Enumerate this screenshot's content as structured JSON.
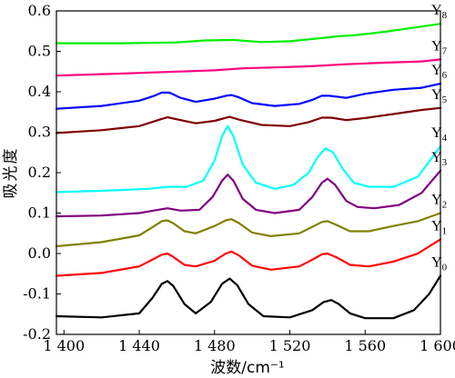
{
  "chart_data": {
    "type": "line",
    "xlabel": "波数/cm⁻¹",
    "ylabel": "吸光度",
    "xlim": [
      1396,
      1600
    ],
    "ylim": [
      -0.2,
      0.6
    ],
    "x_ticks": [
      1400,
      1440,
      1480,
      1520,
      1560,
      1600
    ],
    "x_tick_labels": [
      "1 400",
      "1 440",
      "1 480",
      "1 520",
      "1 560",
      "1 600"
    ],
    "y_ticks": [
      -0.2,
      -0.1,
      0.0,
      0.1,
      0.2,
      0.3,
      0.4,
      0.5,
      0.6
    ],
    "y_tick_labels": [
      "-0.2",
      "-0.1",
      "0.0",
      "0.1",
      "0.2",
      "0.3",
      "0.4",
      "0.5",
      "0.6"
    ],
    "grid": false,
    "legend": "inline labels at right",
    "series": [
      {
        "name": "Y",
        "sub": "0",
        "color": "#000000",
        "points": [
          [
            1396,
            -0.155
          ],
          [
            1420,
            -0.158
          ],
          [
            1440,
            -0.148
          ],
          [
            1447,
            -0.11
          ],
          [
            1452,
            -0.075
          ],
          [
            1455,
            -0.068
          ],
          [
            1458,
            -0.08
          ],
          [
            1464,
            -0.125
          ],
          [
            1470,
            -0.148
          ],
          [
            1478,
            -0.12
          ],
          [
            1484,
            -0.075
          ],
          [
            1488,
            -0.062
          ],
          [
            1492,
            -0.078
          ],
          [
            1498,
            -0.125
          ],
          [
            1506,
            -0.155
          ],
          [
            1520,
            -0.158
          ],
          [
            1532,
            -0.14
          ],
          [
            1538,
            -0.12
          ],
          [
            1542,
            -0.115
          ],
          [
            1546,
            -0.125
          ],
          [
            1552,
            -0.148
          ],
          [
            1560,
            -0.16
          ],
          [
            1575,
            -0.16
          ],
          [
            1586,
            -0.14
          ],
          [
            1594,
            -0.1
          ],
          [
            1600,
            -0.055
          ]
        ]
      },
      {
        "name": "Y",
        "sub": "1",
        "color": "#ff0000",
        "points": [
          [
            1396,
            -0.055
          ],
          [
            1420,
            -0.048
          ],
          [
            1440,
            -0.032
          ],
          [
            1447,
            -0.015
          ],
          [
            1452,
            -0.003
          ],
          [
            1455,
            0.0
          ],
          [
            1458,
            -0.008
          ],
          [
            1464,
            -0.028
          ],
          [
            1470,
            -0.032
          ],
          [
            1480,
            -0.018
          ],
          [
            1486,
            0.0
          ],
          [
            1489,
            0.005
          ],
          [
            1493,
            -0.005
          ],
          [
            1500,
            -0.03
          ],
          [
            1510,
            -0.04
          ],
          [
            1525,
            -0.032
          ],
          [
            1532,
            -0.015
          ],
          [
            1537,
            -0.002
          ],
          [
            1540,
            0.0
          ],
          [
            1545,
            -0.01
          ],
          [
            1552,
            -0.028
          ],
          [
            1562,
            -0.032
          ],
          [
            1575,
            -0.02
          ],
          [
            1588,
            0.0
          ],
          [
            1600,
            0.035
          ]
        ]
      },
      {
        "name": "Y",
        "sub": "2",
        "color": "#808000",
        "points": [
          [
            1396,
            0.018
          ],
          [
            1420,
            0.028
          ],
          [
            1440,
            0.045
          ],
          [
            1447,
            0.065
          ],
          [
            1452,
            0.08
          ],
          [
            1455,
            0.082
          ],
          [
            1458,
            0.075
          ],
          [
            1464,
            0.055
          ],
          [
            1470,
            0.05
          ],
          [
            1480,
            0.068
          ],
          [
            1486,
            0.082
          ],
          [
            1489,
            0.085
          ],
          [
            1493,
            0.075
          ],
          [
            1500,
            0.052
          ],
          [
            1510,
            0.043
          ],
          [
            1525,
            0.05
          ],
          [
            1532,
            0.066
          ],
          [
            1537,
            0.078
          ],
          [
            1540,
            0.08
          ],
          [
            1545,
            0.07
          ],
          [
            1552,
            0.055
          ],
          [
            1562,
            0.055
          ],
          [
            1575,
            0.068
          ],
          [
            1588,
            0.08
          ],
          [
            1600,
            0.1
          ]
        ]
      },
      {
        "name": "Y",
        "sub": "3",
        "color": "#800080",
        "points": [
          [
            1396,
            0.092
          ],
          [
            1420,
            0.094
          ],
          [
            1440,
            0.1
          ],
          [
            1450,
            0.108
          ],
          [
            1455,
            0.112
          ],
          [
            1462,
            0.106
          ],
          [
            1472,
            0.108
          ],
          [
            1479,
            0.14
          ],
          [
            1484,
            0.18
          ],
          [
            1487,
            0.195
          ],
          [
            1490,
            0.18
          ],
          [
            1495,
            0.135
          ],
          [
            1502,
            0.108
          ],
          [
            1512,
            0.1
          ],
          [
            1525,
            0.108
          ],
          [
            1532,
            0.14
          ],
          [
            1537,
            0.175
          ],
          [
            1540,
            0.185
          ],
          [
            1544,
            0.17
          ],
          [
            1550,
            0.13
          ],
          [
            1556,
            0.115
          ],
          [
            1565,
            0.112
          ],
          [
            1578,
            0.12
          ],
          [
            1590,
            0.15
          ],
          [
            1600,
            0.205
          ]
        ]
      },
      {
        "name": "Y",
        "sub": "4",
        "color": "#00ffff",
        "points": [
          [
            1396,
            0.152
          ],
          [
            1420,
            0.155
          ],
          [
            1445,
            0.16
          ],
          [
            1455,
            0.165
          ],
          [
            1465,
            0.165
          ],
          [
            1474,
            0.18
          ],
          [
            1480,
            0.23
          ],
          [
            1484,
            0.29
          ],
          [
            1487,
            0.315
          ],
          [
            1490,
            0.29
          ],
          [
            1495,
            0.22
          ],
          [
            1502,
            0.175
          ],
          [
            1512,
            0.16
          ],
          [
            1522,
            0.17
          ],
          [
            1530,
            0.2
          ],
          [
            1535,
            0.24
          ],
          [
            1539,
            0.26
          ],
          [
            1543,
            0.25
          ],
          [
            1548,
            0.21
          ],
          [
            1554,
            0.175
          ],
          [
            1562,
            0.165
          ],
          [
            1575,
            0.165
          ],
          [
            1588,
            0.19
          ],
          [
            1600,
            0.265
          ]
        ]
      },
      {
        "name": "Y",
        "sub": "5",
        "color": "#800000",
        "points": [
          [
            1396,
            0.298
          ],
          [
            1420,
            0.305
          ],
          [
            1440,
            0.315
          ],
          [
            1450,
            0.33
          ],
          [
            1455,
            0.337
          ],
          [
            1462,
            0.33
          ],
          [
            1470,
            0.322
          ],
          [
            1480,
            0.328
          ],
          [
            1488,
            0.338
          ],
          [
            1494,
            0.33
          ],
          [
            1505,
            0.318
          ],
          [
            1520,
            0.315
          ],
          [
            1530,
            0.325
          ],
          [
            1537,
            0.336
          ],
          [
            1542,
            0.336
          ],
          [
            1550,
            0.33
          ],
          [
            1560,
            0.335
          ],
          [
            1575,
            0.345
          ],
          [
            1590,
            0.355
          ],
          [
            1600,
            0.36
          ]
        ]
      },
      {
        "name": "Y",
        "sub": "6",
        "color": "#0000ff",
        "points": [
          [
            1396,
            0.358
          ],
          [
            1420,
            0.365
          ],
          [
            1440,
            0.378
          ],
          [
            1448,
            0.39
          ],
          [
            1452,
            0.398
          ],
          [
            1456,
            0.398
          ],
          [
            1462,
            0.385
          ],
          [
            1470,
            0.375
          ],
          [
            1480,
            0.383
          ],
          [
            1486,
            0.39
          ],
          [
            1489,
            0.392
          ],
          [
            1493,
            0.386
          ],
          [
            1500,
            0.372
          ],
          [
            1512,
            0.365
          ],
          [
            1525,
            0.37
          ],
          [
            1532,
            0.38
          ],
          [
            1537,
            0.39
          ],
          [
            1541,
            0.39
          ],
          [
            1550,
            0.385
          ],
          [
            1560,
            0.395
          ],
          [
            1575,
            0.405
          ],
          [
            1590,
            0.41
          ],
          [
            1600,
            0.42
          ]
        ]
      },
      {
        "name": "Y",
        "sub": "7",
        "color": "#ff0080",
        "points": [
          [
            1396,
            0.44
          ],
          [
            1430,
            0.445
          ],
          [
            1460,
            0.45
          ],
          [
            1480,
            0.453
          ],
          [
            1495,
            0.458
          ],
          [
            1510,
            0.46
          ],
          [
            1530,
            0.463
          ],
          [
            1550,
            0.468
          ],
          [
            1570,
            0.472
          ],
          [
            1590,
            0.475
          ],
          [
            1600,
            0.48
          ]
        ]
      },
      {
        "name": "Y",
        "sub": "8",
        "color": "#00ee00",
        "points": [
          [
            1396,
            0.52
          ],
          [
            1430,
            0.52
          ],
          [
            1460,
            0.522
          ],
          [
            1475,
            0.527
          ],
          [
            1490,
            0.528
          ],
          [
            1505,
            0.523
          ],
          [
            1520,
            0.525
          ],
          [
            1535,
            0.532
          ],
          [
            1545,
            0.537
          ],
          [
            1555,
            0.54
          ],
          [
            1570,
            0.548
          ],
          [
            1585,
            0.558
          ],
          [
            1600,
            0.568
          ]
        ]
      }
    ]
  }
}
